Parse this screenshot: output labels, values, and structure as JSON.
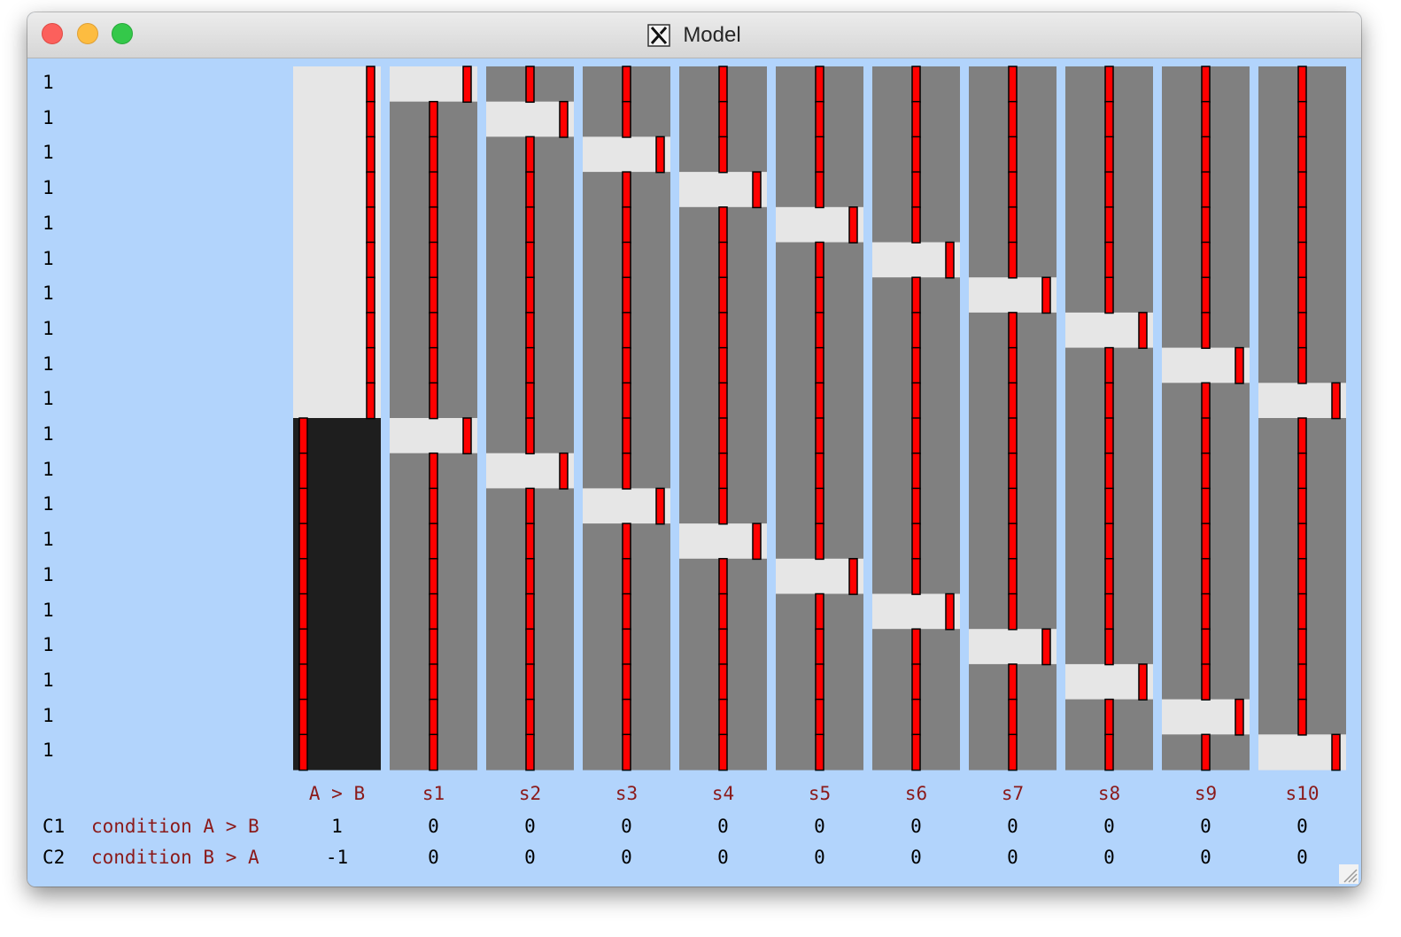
{
  "window": {
    "title": "Model",
    "icon": "x11-icon"
  },
  "row_labels": [
    "1",
    "1",
    "1",
    "1",
    "1",
    "1",
    "1",
    "1",
    "1",
    "1",
    "1",
    "1",
    "1",
    "1",
    "1",
    "1",
    "1",
    "1",
    "1",
    "1"
  ],
  "columns": [
    "A > B",
    "s1",
    "s2",
    "s3",
    "s4",
    "s5",
    "s6",
    "s7",
    "s8",
    "s9",
    "s10"
  ],
  "design_matrix": {
    "colors": {
      "value_1": "#e6e6e6",
      "value_0": "#808080",
      "value_neg1": "#1e1e1e",
      "parameter_bar": "#ff0000",
      "background": "#b2d4fc"
    },
    "cell_values": [
      [
        1,
        1,
        0,
        0,
        0,
        0,
        0,
        0,
        0,
        0,
        0
      ],
      [
        1,
        0,
        1,
        0,
        0,
        0,
        0,
        0,
        0,
        0,
        0
      ],
      [
        1,
        0,
        0,
        1,
        0,
        0,
        0,
        0,
        0,
        0,
        0
      ],
      [
        1,
        0,
        0,
        0,
        1,
        0,
        0,
        0,
        0,
        0,
        0
      ],
      [
        1,
        0,
        0,
        0,
        0,
        1,
        0,
        0,
        0,
        0,
        0
      ],
      [
        1,
        0,
        0,
        0,
        0,
        0,
        1,
        0,
        0,
        0,
        0
      ],
      [
        1,
        0,
        0,
        0,
        0,
        0,
        0,
        1,
        0,
        0,
        0
      ],
      [
        1,
        0,
        0,
        0,
        0,
        0,
        0,
        0,
        1,
        0,
        0
      ],
      [
        1,
        0,
        0,
        0,
        0,
        0,
        0,
        0,
        0,
        1,
        0
      ],
      [
        1,
        0,
        0,
        0,
        0,
        0,
        0,
        0,
        0,
        0,
        1
      ],
      [
        -1,
        1,
        0,
        0,
        0,
        0,
        0,
        0,
        0,
        0,
        0
      ],
      [
        -1,
        0,
        1,
        0,
        0,
        0,
        0,
        0,
        0,
        0,
        0
      ],
      [
        -1,
        0,
        0,
        1,
        0,
        0,
        0,
        0,
        0,
        0,
        0
      ],
      [
        -1,
        0,
        0,
        0,
        1,
        0,
        0,
        0,
        0,
        0,
        0
      ],
      [
        -1,
        0,
        0,
        0,
        0,
        1,
        0,
        0,
        0,
        0,
        0
      ],
      [
        -1,
        0,
        0,
        0,
        0,
        0,
        1,
        0,
        0,
        0,
        0
      ],
      [
        -1,
        0,
        0,
        0,
        0,
        0,
        0,
        1,
        0,
        0,
        0
      ],
      [
        -1,
        0,
        0,
        0,
        0,
        0,
        0,
        0,
        1,
        0,
        0
      ],
      [
        -1,
        0,
        0,
        0,
        0,
        0,
        0,
        0,
        0,
        1,
        0
      ],
      [
        -1,
        0,
        0,
        0,
        0,
        0,
        0,
        0,
        0,
        0,
        1
      ]
    ]
  },
  "contrasts": [
    {
      "id": "C1",
      "name": "condition A > B",
      "values": [
        "1",
        "0",
        "0",
        "0",
        "0",
        "0",
        "0",
        "0",
        "0",
        "0",
        "0"
      ]
    },
    {
      "id": "C2",
      "name": "condition B > A",
      "values": [
        "-1",
        "0",
        "0",
        "0",
        "0",
        "0",
        "0",
        "0",
        "0",
        "0",
        "0"
      ]
    }
  ]
}
